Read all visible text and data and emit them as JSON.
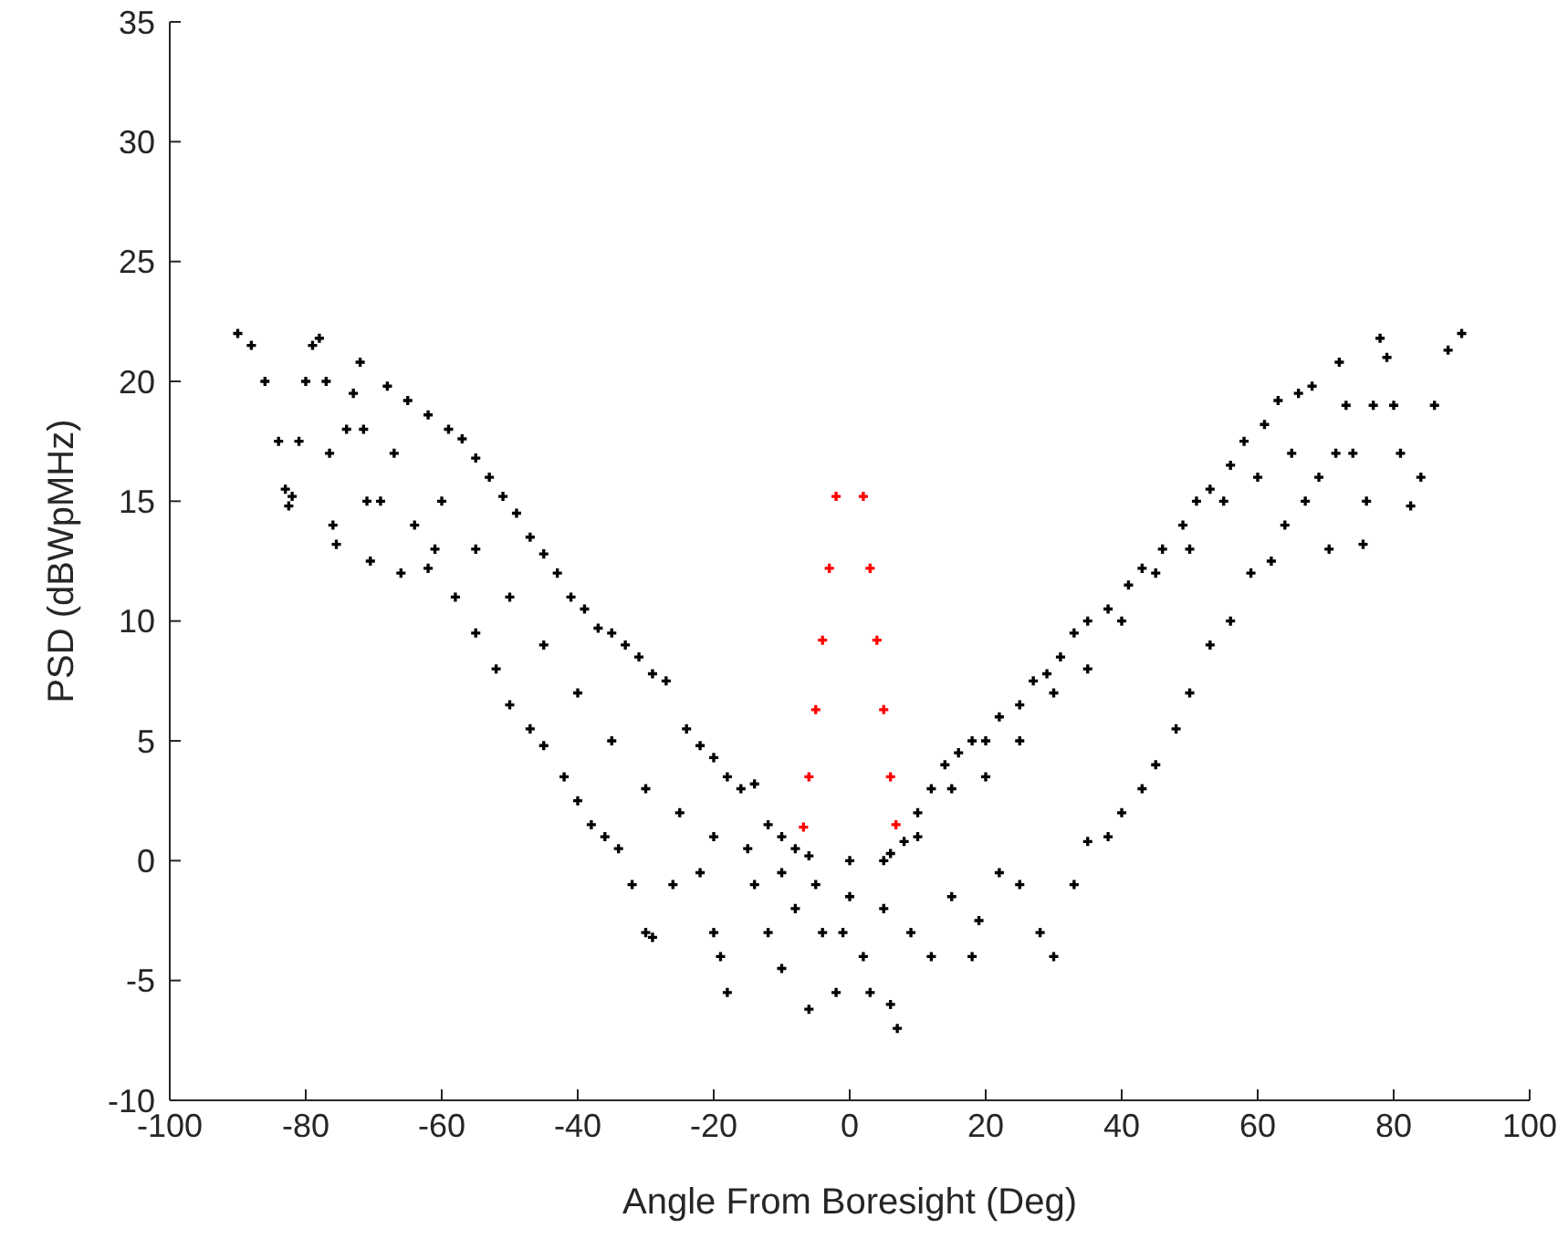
{
  "chart_data": {
    "type": "scatter",
    "xlabel": "Angle From Boresight (Deg)",
    "ylabel": "PSD (dBWpMHz)",
    "xlim": [
      -100,
      100
    ],
    "ylim": [
      -10,
      35
    ],
    "xticks": [
      -100,
      -80,
      -60,
      -40,
      -20,
      0,
      20,
      40,
      60,
      80,
      100
    ],
    "yticks": [
      -10,
      -5,
      0,
      5,
      10,
      15,
      20,
      25,
      30,
      35
    ],
    "grid": false,
    "marker": "cross",
    "series": [
      {
        "color": "#000000",
        "x": [
          -90,
          -88,
          -86,
          -84,
          -83,
          -82.5,
          -82,
          -81,
          -80,
          -79,
          -78,
          -77,
          -76.5,
          -76,
          -75.5,
          -74,
          -73,
          -72,
          -71.5,
          -71,
          -70.5,
          -69,
          -68,
          -67,
          -66,
          -65,
          -64,
          -62,
          -61,
          -59,
          -57,
          -55,
          -53,
          -51,
          -49,
          -47,
          -45,
          -43,
          -41,
          -39,
          -37,
          -35,
          -33,
          -31,
          -29,
          -27,
          -24,
          -22,
          -20,
          -18,
          -16,
          -14,
          -12,
          -10,
          -8,
          -6,
          -62,
          -58,
          -55,
          -52,
          -50,
          -47,
          -45,
          -42,
          -40,
          -38,
          -36,
          -34,
          -32,
          -30,
          -29,
          -26,
          -22,
          -20,
          -19,
          -18,
          -14,
          -12,
          -10,
          -8,
          -6,
          -4,
          -2,
          -1,
          0,
          2,
          3,
          5,
          6,
          7,
          9,
          12,
          15,
          18,
          19,
          22,
          25,
          28,
          30,
          33,
          35,
          38,
          40,
          43,
          45,
          48,
          50,
          53,
          56,
          59,
          62,
          64,
          67,
          -60,
          -55,
          -50,
          -45,
          -40,
          -35,
          -30,
          -25,
          -20,
          -15,
          -10,
          -5,
          0,
          5,
          10,
          15,
          20,
          25,
          30,
          35,
          40,
          45,
          50,
          55,
          60,
          65,
          6,
          8,
          10,
          12,
          14,
          16,
          18,
          20,
          22,
          25,
          27,
          29,
          31,
          33,
          35,
          38,
          41,
          43,
          46,
          49,
          51,
          53,
          56,
          58,
          61,
          63,
          66,
          68,
          69,
          70.5,
          71.5,
          72,
          73,
          74,
          75.5,
          76,
          77,
          78,
          79,
          80,
          81,
          82.5,
          84,
          86,
          88,
          90
        ],
        "values": [
          22,
          21.5,
          20,
          17.5,
          15.5,
          14.8,
          15.2,
          17.5,
          20,
          21.5,
          21.8,
          20,
          17,
          14,
          13.2,
          18,
          19.5,
          20.8,
          18,
          15,
          12.5,
          15,
          19.8,
          17,
          12,
          19.2,
          14,
          18.6,
          13,
          18,
          17.6,
          16.8,
          16,
          15.2,
          14.5,
          13.5,
          12.8,
          12,
          11,
          10.5,
          9.7,
          9.5,
          9,
          8.5,
          7.8,
          7.5,
          5.5,
          4.8,
          4.3,
          3.5,
          3,
          3.2,
          1.5,
          1,
          0.5,
          0.2,
          12.2,
          11,
          9.5,
          8,
          6.5,
          5.5,
          4.8,
          3.5,
          2.5,
          1.5,
          1,
          0.5,
          -1,
          -3,
          -3.2,
          -1,
          -0.5,
          -3,
          -4,
          -5.5,
          -1,
          -3,
          -4.5,
          -2,
          -6.2,
          -3,
          -5.5,
          -3,
          -1.5,
          -4,
          -5.5,
          -2,
          -6,
          -7,
          -3,
          -4,
          -1.5,
          -4,
          -2.5,
          -0.5,
          -1,
          -3,
          -4,
          -1,
          0.8,
          1,
          2,
          3,
          4,
          5.5,
          7,
          9,
          10,
          12,
          12.5,
          14,
          15,
          15,
          13,
          11,
          9,
          7,
          5,
          3,
          2,
          1,
          0.5,
          -0.5,
          -1,
          0,
          0,
          1,
          3,
          3.5,
          5,
          7,
          8,
          10,
          12,
          13,
          15,
          16,
          17,
          0.3,
          0.8,
          2,
          3,
          4,
          4.5,
          5,
          5,
          6,
          6.5,
          7.5,
          7.8,
          8.5,
          9.5,
          10,
          10.5,
          11.5,
          12.2,
          13,
          14,
          15,
          15.5,
          16.5,
          17.5,
          18.2,
          19.2,
          19.5,
          19.8,
          16,
          13,
          17,
          20.8,
          19,
          17,
          13.2,
          15,
          19,
          21.8,
          21,
          19,
          17,
          14.8,
          16,
          19,
          21.3,
          22
        ]
      },
      {
        "color": "#ff0000",
        "x": [
          -6.8,
          -6,
          -5,
          -4,
          -3,
          -2,
          2,
          3,
          4,
          5,
          6,
          6.8
        ],
        "values": [
          1.4,
          3.5,
          6.3,
          9.2,
          12.2,
          15.2,
          15.2,
          12.2,
          9.2,
          6.3,
          3.5,
          1.5
        ]
      }
    ]
  }
}
